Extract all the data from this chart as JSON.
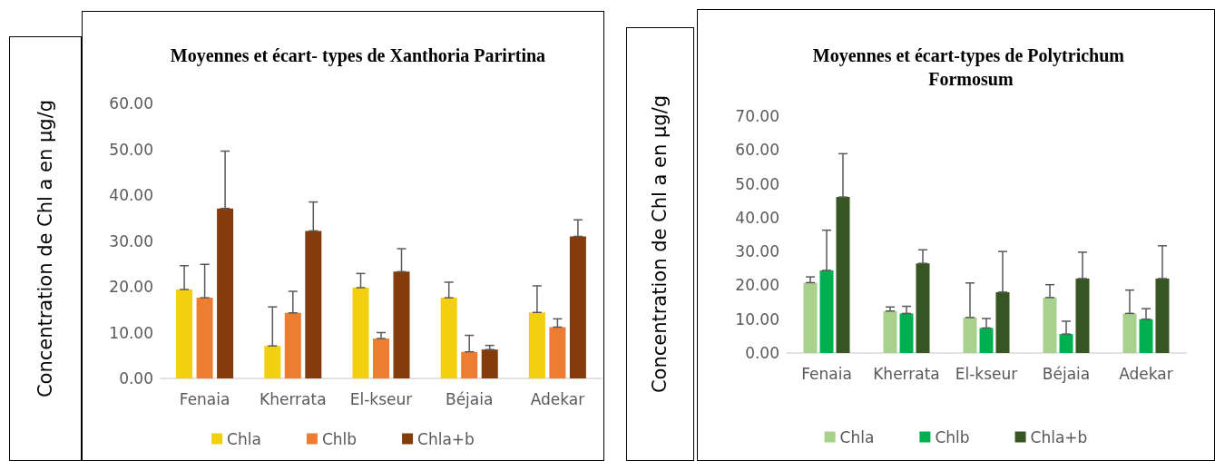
{
  "chart_data": [
    {
      "type": "bar",
      "title": "Moyennes et écart- types de Xanthoria Parirtina",
      "ylabel": "Concentration de Chl a en µg/g",
      "categories": [
        "Fenaia",
        "Kherrata",
        "El-kseur",
        "Béjaia",
        "Adekar"
      ],
      "series": [
        {
          "name": "Chla",
          "color": "#f2d00f",
          "values": [
            19.4,
            7.1,
            19.8,
            17.6,
            14.4
          ],
          "errors": [
            [
              19.4,
              24.6
            ],
            [
              7.1,
              15.6
            ],
            [
              19.8,
              22.9
            ],
            [
              17.6,
              21.0
            ],
            [
              14.4,
              20.2
            ]
          ]
        },
        {
          "name": "Chlb",
          "color": "#ed7d31",
          "values": [
            17.6,
            14.3,
            8.7,
            5.8,
            11.2
          ],
          "errors": [
            [
              17.6,
              24.9
            ],
            [
              14.3,
              19.0
            ],
            [
              8.7,
              10.0
            ],
            [
              5.8,
              9.4
            ],
            [
              11.2,
              13.0
            ]
          ]
        },
        {
          "name": "Chla+b",
          "color": "#843c0c",
          "values": [
            37.1,
            32.2,
            23.3,
            6.3,
            31.0
          ],
          "errors": [
            [
              37.1,
              49.6
            ],
            [
              32.2,
              38.5
            ],
            [
              23.3,
              28.3
            ],
            [
              6.3,
              7.2
            ],
            [
              31.0,
              34.6
            ]
          ]
        }
      ],
      "ylim": [
        0,
        60
      ],
      "yticks": [
        {
          "value": 0,
          "label": "0.00"
        },
        {
          "value": 10,
          "label": "10.00"
        },
        {
          "value": 20,
          "label": "20.00"
        },
        {
          "value": 30,
          "label": "30.00"
        },
        {
          "value": 40,
          "label": "40.00"
        },
        {
          "value": 50,
          "label": "50.00"
        },
        {
          "value": 60,
          "label": "60.00"
        }
      ],
      "grid": false,
      "legend": "bottom"
    },
    {
      "type": "bar",
      "title": "Moyennes et écart-types de Polytrichum Formosum",
      "ylabel": "Concentration de Chl a en µg/g",
      "categories": [
        "Fenaia",
        "Kherrata",
        "El-kseur",
        "Béjaia",
        "Adekar"
      ],
      "series": [
        {
          "name": "Chla",
          "color": "#a9d18e",
          "values": [
            20.8,
            12.4,
            10.5,
            16.4,
            11.7
          ],
          "errors": [
            [
              20.8,
              22.5
            ],
            [
              12.4,
              13.6
            ],
            [
              10.5,
              20.7
            ],
            [
              16.4,
              20.2
            ],
            [
              11.7,
              18.6
            ]
          ]
        },
        {
          "name": "Chlb",
          "color": "#00b050",
          "values": [
            24.4,
            11.7,
            7.4,
            5.6,
            10.0
          ],
          "errors": [
            [
              24.4,
              36.3
            ],
            [
              11.7,
              13.8
            ],
            [
              7.4,
              10.2
            ],
            [
              5.6,
              9.4
            ],
            [
              10.0,
              13.1
            ]
          ]
        },
        {
          "name": "Chla+b",
          "color": "#375623",
          "values": [
            46.1,
            26.5,
            18.0,
            22.0,
            22.0
          ],
          "errors": [
            [
              46.1,
              58.9
            ],
            [
              26.5,
              30.5
            ],
            [
              18.0,
              30.0
            ],
            [
              22.0,
              29.8
            ],
            [
              22.0,
              31.7
            ]
          ]
        }
      ],
      "ylim": [
        0,
        70
      ],
      "yticks": [
        {
          "value": 0,
          "label": "0.00"
        },
        {
          "value": 10,
          "label": "10.00"
        },
        {
          "value": 20,
          "label": "20.00"
        },
        {
          "value": 30,
          "label": "30.00"
        },
        {
          "value": 40,
          "label": "40.00"
        },
        {
          "value": 50,
          "label": "50.00"
        },
        {
          "value": 60,
          "label": "60.00"
        },
        {
          "value": 70,
          "label": "70.00"
        }
      ],
      "grid": false,
      "legend": "bottom"
    }
  ]
}
